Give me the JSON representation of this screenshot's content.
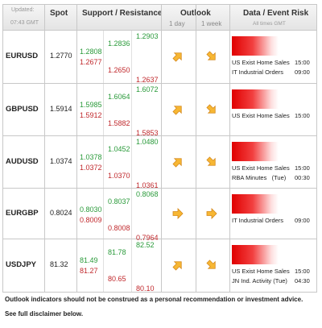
{
  "header": {
    "updated_label": "Updated:",
    "updated_time": "07:43 GMT",
    "spot": "Spot",
    "support_resistance": "Support / Resistance",
    "outlook": "Outlook",
    "outlook_1day": "1 day",
    "outlook_1week": "1 week",
    "data_event_risk": "Data / Event Risk",
    "times_note": "All times GMT"
  },
  "rows": [
    {
      "pair": "EURUSD",
      "spot": "1.2770",
      "levels": [
        [
          "1.2808",
          "1.2677"
        ],
        [
          "1.2836",
          "1.2650"
        ],
        [
          "1.2903",
          "1.2637"
        ]
      ],
      "outlook": [
        "up",
        "down"
      ],
      "events": [
        {
          "name": "US Exist Home Sales",
          "time": "15:00"
        },
        {
          "name": "IT Industrial Orders",
          "time": "09:00"
        }
      ]
    },
    {
      "pair": "GBPUSD",
      "spot": "1.5914",
      "levels": [
        [
          "1.5985",
          "1.5912"
        ],
        [
          "1.6064",
          "1.5882"
        ],
        [
          "1.6072",
          "1.5853"
        ]
      ],
      "outlook": [
        "up",
        "down"
      ],
      "events": [
        {
          "name": "US Exist Home Sales",
          "time": "15:00"
        }
      ]
    },
    {
      "pair": "AUDUSD",
      "spot": "1.0374",
      "levels": [
        [
          "1.0378",
          "1.0372"
        ],
        [
          "1.0452",
          "1.0370"
        ],
        [
          "1.0480",
          "1.0361"
        ]
      ],
      "outlook": [
        "up",
        "down"
      ],
      "events": [
        {
          "name": "US Exist Home Sales",
          "time": "15:00"
        },
        {
          "name": "RBA Minutes   (Tue)",
          "time": "00:30"
        }
      ]
    },
    {
      "pair": "EURGBP",
      "spot": "0.8024",
      "levels": [
        [
          "0.8030",
          "0.8009"
        ],
        [
          "0.8037",
          "0.8008"
        ],
        [
          "0.8068",
          "0.7964"
        ]
      ],
      "outlook": [
        "flat",
        "flat"
      ],
      "events": [
        {
          "name": "IT Industrial Orders",
          "time": "09:00"
        }
      ]
    },
    {
      "pair": "USDJPY",
      "spot": "81.32",
      "levels": [
        [
          "81.49",
          "81.27"
        ],
        [
          "81.78",
          "80.65"
        ],
        [
          "82.52",
          "80.10"
        ]
      ],
      "outlook": [
        "up",
        "down"
      ],
      "events": [
        {
          "name": "US Exist Home Sales",
          "time": "15:00"
        },
        {
          "name": "JN Ind. Activity (Tue)",
          "time": "04:30"
        }
      ]
    }
  ],
  "footer": [
    "Outlook indicators should not be construed as a personal recommendation or investment advice.",
    "See full disclaimer below."
  ]
}
